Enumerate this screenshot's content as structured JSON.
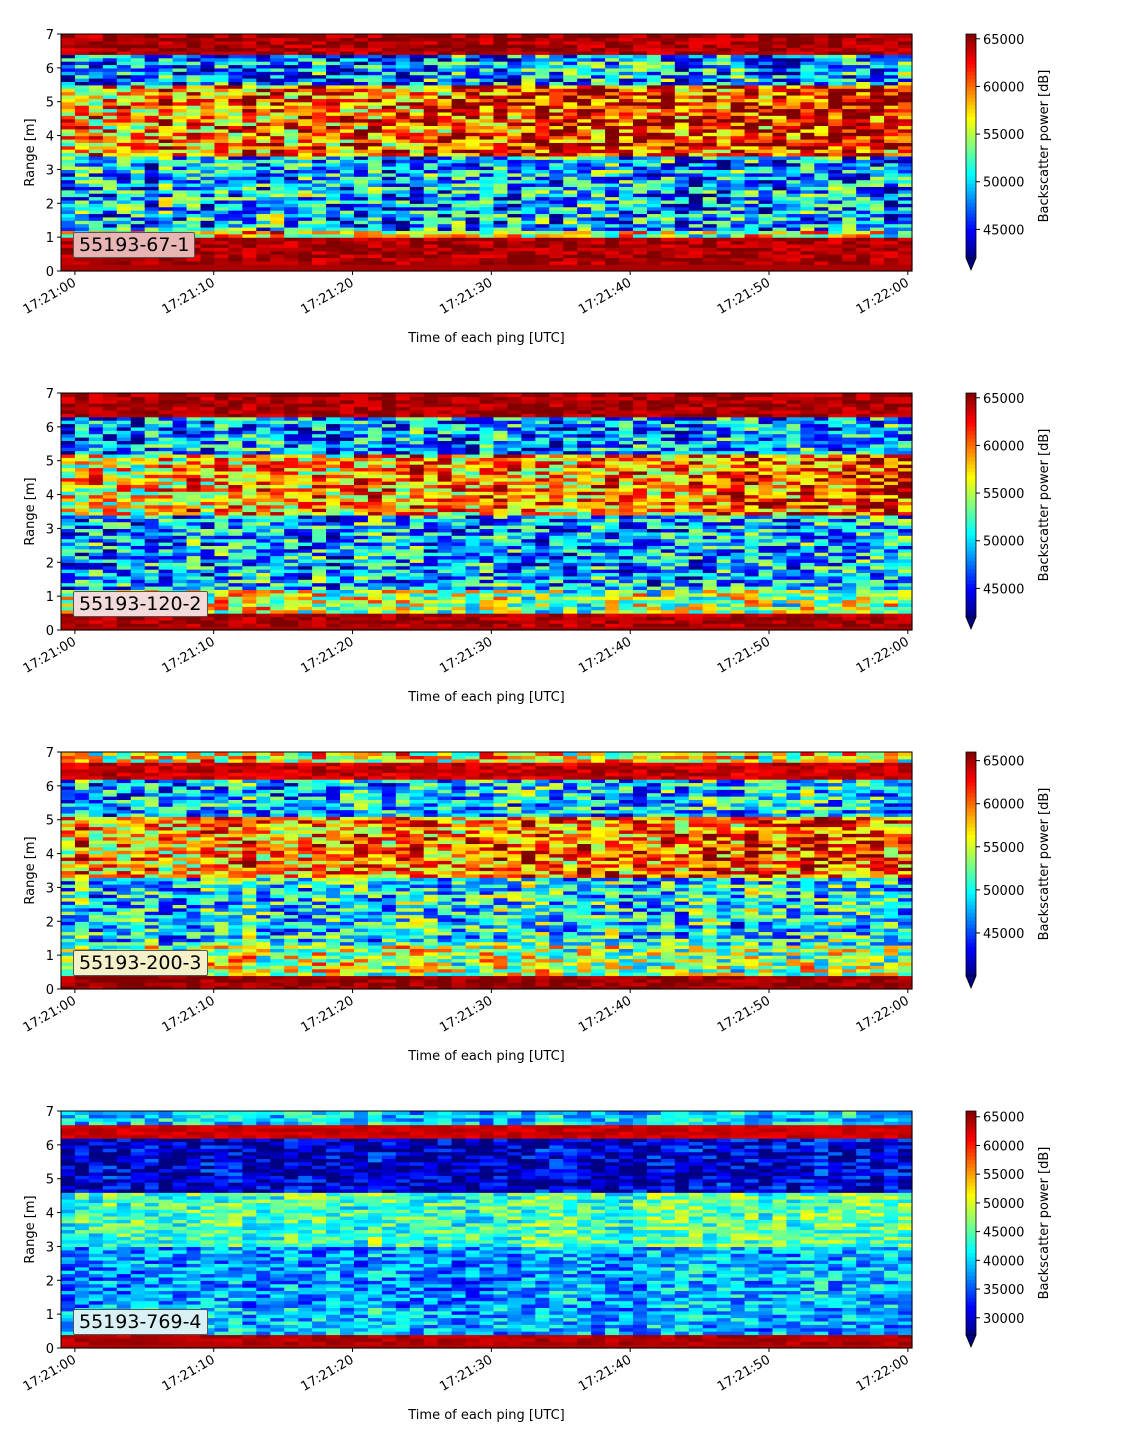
{
  "figure": {
    "colormap": "jet",
    "colors": {
      "background": "#ffffff",
      "axis": "#000000"
    }
  },
  "chart_data": [
    {
      "type": "heatmap",
      "label": "55193-67-1",
      "label_bg": "#e8b4b4",
      "xlabel": "Time of each ping [UTC]",
      "ylabel": "Range [m]",
      "xticks": [
        "17:21:00",
        "17:21:10",
        "17:21:20",
        "17:21:30",
        "17:21:40",
        "17:21:50",
        "17:22:00"
      ],
      "xlim_seconds": [
        -1,
        60.3
      ],
      "ylim": [
        0,
        7
      ],
      "yticks": [
        0,
        1,
        2,
        3,
        4,
        5,
        6,
        7
      ],
      "colorbar_label": "Backscatter power [dB]",
      "clim": [
        42000,
        65500
      ],
      "colorbar_ticks": [
        45000,
        50000,
        55000,
        60000,
        65000
      ],
      "n_pings": 61,
      "bands": [
        {
          "from": 0.2,
          "to": 1.0,
          "start": 64500,
          "end": 64500
        },
        {
          "from": 1.0,
          "to": 1.2,
          "start": 57000,
          "end": 55000
        },
        {
          "from": 1.2,
          "to": 3.4,
          "start": 50000,
          "end": 48000
        },
        {
          "from": 3.4,
          "to": 5.5,
          "start": 59000,
          "end": 62000
        },
        {
          "from": 5.5,
          "to": 6.4,
          "start": 47500,
          "end": 49000
        },
        {
          "from": 6.4,
          "to": 7.0,
          "start": 64500,
          "end": 64500
        }
      ],
      "noise": 7000,
      "seed": 11
    },
    {
      "type": "heatmap",
      "label": "55193-120-2",
      "label_bg": "#f3dada",
      "xlabel": "Time of each ping [UTC]",
      "ylabel": "Range [m]",
      "xticks": [
        "17:21:00",
        "17:21:10",
        "17:21:20",
        "17:21:30",
        "17:21:40",
        "17:21:50",
        "17:22:00"
      ],
      "xlim_seconds": [
        -1,
        60.3
      ],
      "ylim": [
        0,
        7
      ],
      "yticks": [
        0,
        1,
        2,
        3,
        4,
        5,
        6,
        7
      ],
      "colorbar_label": "Backscatter power [dB]",
      "clim": [
        42000,
        65500
      ],
      "colorbar_ticks": [
        45000,
        50000,
        55000,
        60000,
        65000
      ],
      "n_pings": 61,
      "bands": [
        {
          "from": 0.1,
          "to": 0.5,
          "start": 64500,
          "end": 64500
        },
        {
          "from": 0.5,
          "to": 1.2,
          "start": 56000,
          "end": 54000
        },
        {
          "from": 1.2,
          "to": 3.4,
          "start": 49000,
          "end": 49500
        },
        {
          "from": 3.4,
          "to": 5.2,
          "start": 57000,
          "end": 61000
        },
        {
          "from": 5.2,
          "to": 6.3,
          "start": 48500,
          "end": 49000
        },
        {
          "from": 6.3,
          "to": 7.0,
          "start": 64500,
          "end": 64500
        }
      ],
      "noise": 6500,
      "seed": 23
    },
    {
      "type": "heatmap",
      "label": "55193-200-3",
      "label_bg": "#f4f1c8",
      "xlabel": "Time of each ping [UTC]",
      "ylabel": "Range [m]",
      "xticks": [
        "17:21:00",
        "17:21:10",
        "17:21:20",
        "17:21:30",
        "17:21:40",
        "17:21:50",
        "17:22:00"
      ],
      "xlim_seconds": [
        -1,
        60.3
      ],
      "ylim": [
        0,
        7
      ],
      "yticks": [
        0,
        1,
        2,
        3,
        4,
        5,
        6,
        7
      ],
      "colorbar_label": "Backscatter power [dB]",
      "clim": [
        40000,
        66000
      ],
      "colorbar_ticks": [
        45000,
        50000,
        55000,
        60000,
        65000
      ],
      "n_pings": 61,
      "bands": [
        {
          "from": 0.0,
          "to": 0.4,
          "start": 65500,
          "end": 65500
        },
        {
          "from": 0.4,
          "to": 1.3,
          "start": 55000,
          "end": 54000
        },
        {
          "from": 1.3,
          "to": 3.3,
          "start": 49500,
          "end": 50000
        },
        {
          "from": 3.3,
          "to": 5.1,
          "start": 58000,
          "end": 61000
        },
        {
          "from": 5.1,
          "to": 6.2,
          "start": 48000,
          "end": 49000
        },
        {
          "from": 6.2,
          "to": 6.7,
          "start": 64000,
          "end": 64000
        },
        {
          "from": 6.7,
          "to": 7.0,
          "start": 56000,
          "end": 56000
        }
      ],
      "noise": 7000,
      "seed": 37
    },
    {
      "type": "heatmap",
      "label": "55193-769-4",
      "label_bg": "#d9f1f4",
      "xlabel": "Time of each ping [UTC]",
      "ylabel": "Range [m]",
      "xticks": [
        "17:21:00",
        "17:21:10",
        "17:21:20",
        "17:21:30",
        "17:21:40",
        "17:21:50",
        "17:22:00"
      ],
      "xlim_seconds": [
        -1,
        60.3
      ],
      "ylim": [
        0,
        7
      ],
      "yticks": [
        0,
        1,
        2,
        3,
        4,
        5,
        6,
        7
      ],
      "colorbar_label": "Backscatter power [dB]",
      "clim": [
        27000,
        66000
      ],
      "colorbar_ticks": [
        30000,
        35000,
        40000,
        45000,
        50000,
        55000,
        60000,
        65000
      ],
      "n_pings": 61,
      "bands": [
        {
          "from": 0.1,
          "to": 0.45,
          "start": 64000,
          "end": 64000
        },
        {
          "from": 0.45,
          "to": 1.2,
          "start": 40000,
          "end": 38000
        },
        {
          "from": 1.2,
          "to": 3.0,
          "start": 37000,
          "end": 39000
        },
        {
          "from": 3.0,
          "to": 4.6,
          "start": 44000,
          "end": 45000
        },
        {
          "from": 4.6,
          "to": 6.2,
          "start": 29500,
          "end": 30500
        },
        {
          "from": 6.2,
          "to": 6.55,
          "start": 63000,
          "end": 63000
        },
        {
          "from": 6.55,
          "to": 7.0,
          "start": 40000,
          "end": 40000
        }
      ],
      "noise": 6000,
      "seed": 53
    }
  ]
}
